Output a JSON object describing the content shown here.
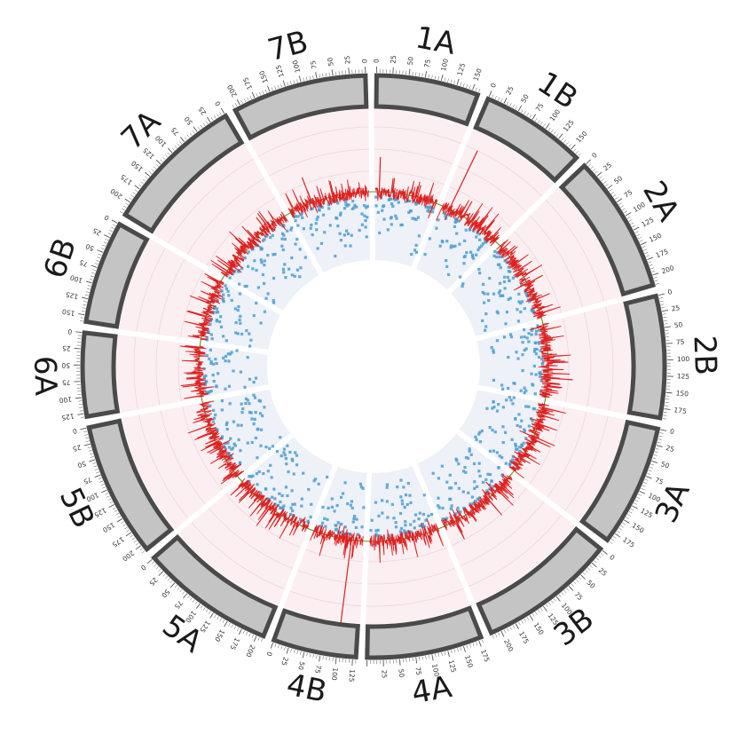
{
  "chart_data": {
    "type": "circos",
    "chromosomes": [
      {
        "name": "1A",
        "length": 160,
        "ticks": [
          0,
          25,
          50,
          75,
          100,
          125,
          150
        ]
      },
      {
        "name": "1B",
        "length": 165,
        "ticks": [
          0,
          25,
          50,
          75,
          100,
          125,
          150
        ]
      },
      {
        "name": "2A",
        "length": 215,
        "ticks": [
          0,
          25,
          50,
          75,
          100,
          125,
          150,
          175,
          200
        ]
      },
      {
        "name": "2B",
        "length": 190,
        "ticks": [
          0,
          25,
          50,
          75,
          100,
          125,
          150,
          175
        ]
      },
      {
        "name": "3A",
        "length": 190,
        "ticks": [
          0,
          25,
          50,
          75,
          100,
          125,
          150,
          175
        ]
      },
      {
        "name": "3B",
        "length": 215,
        "ticks": [
          0,
          25,
          50,
          75,
          100,
          125,
          150,
          175,
          200
        ]
      },
      {
        "name": "4A",
        "length": 180,
        "ticks": [
          175,
          150,
          125,
          100,
          75,
          50,
          25
        ]
      },
      {
        "name": "4B",
        "length": 130,
        "ticks": [
          125,
          100,
          75,
          50,
          25,
          0
        ]
      },
      {
        "name": "5A",
        "length": 210,
        "ticks": [
          200,
          175,
          150,
          125,
          100,
          75,
          50,
          25,
          0
        ]
      },
      {
        "name": "5B",
        "length": 210,
        "ticks": [
          200,
          175,
          150,
          125,
          100,
          75,
          50,
          25,
          0
        ]
      },
      {
        "name": "6A",
        "length": 130,
        "ticks": [
          0,
          25,
          50,
          75,
          100,
          125
        ]
      },
      {
        "name": "6B",
        "length": 160,
        "ticks": [
          0,
          25,
          50,
          75,
          100,
          125,
          150
        ]
      },
      {
        "name": "7A",
        "length": 220,
        "ticks": [
          0,
          25,
          50,
          75,
          100,
          125,
          150,
          175,
          200
        ]
      },
      {
        "name": "7B",
        "length": 210,
        "ticks": [
          0,
          25,
          50,
          75,
          100,
          125,
          150,
          175,
          200
        ]
      }
    ],
    "tracks": {
      "outer_band_color": "#fbeff2",
      "inner_band_color": "#eef1f7",
      "threshold_line_color": "#4a9a2a",
      "line_track_color": "#dd2222",
      "scatter_track_color": "#4a9fd4",
      "spikes": [
        {
          "chr": "1A",
          "pos": 10,
          "value": 1.4
        },
        {
          "chr": "1A",
          "pos": 45,
          "value": 0.6
        },
        {
          "chr": "1A",
          "pos": 110,
          "value": 0.5
        },
        {
          "chr": "1B",
          "pos": 20,
          "value": 2.6
        },
        {
          "chr": "1B",
          "pos": 60,
          "value": 0.7
        },
        {
          "chr": "1B",
          "pos": 110,
          "value": 0.6
        },
        {
          "chr": "2A",
          "pos": 30,
          "value": 0.5
        },
        {
          "chr": "2A",
          "pos": 120,
          "value": 0.7
        },
        {
          "chr": "2B",
          "pos": 100,
          "value": 0.8
        },
        {
          "chr": "2B",
          "pos": 140,
          "value": 1.0
        },
        {
          "chr": "2B",
          "pos": 160,
          "value": 0.6
        },
        {
          "chr": "3A",
          "pos": 60,
          "value": 0.5
        },
        {
          "chr": "3B",
          "pos": 30,
          "value": 0.6
        },
        {
          "chr": "4A",
          "pos": 150,
          "value": 0.4
        },
        {
          "chr": "4B",
          "pos": 100,
          "value": 3.4
        },
        {
          "chr": "5A",
          "pos": 30,
          "value": 0.6
        },
        {
          "chr": "5B",
          "pos": 120,
          "value": 0.5
        },
        {
          "chr": "6A",
          "pos": 100,
          "value": 0.7
        },
        {
          "chr": "6B",
          "pos": 100,
          "value": 0.8
        },
        {
          "chr": "7A",
          "pos": 60,
          "value": 0.6
        },
        {
          "chr": "7B",
          "pos": 150,
          "value": 1.1
        }
      ]
    }
  }
}
